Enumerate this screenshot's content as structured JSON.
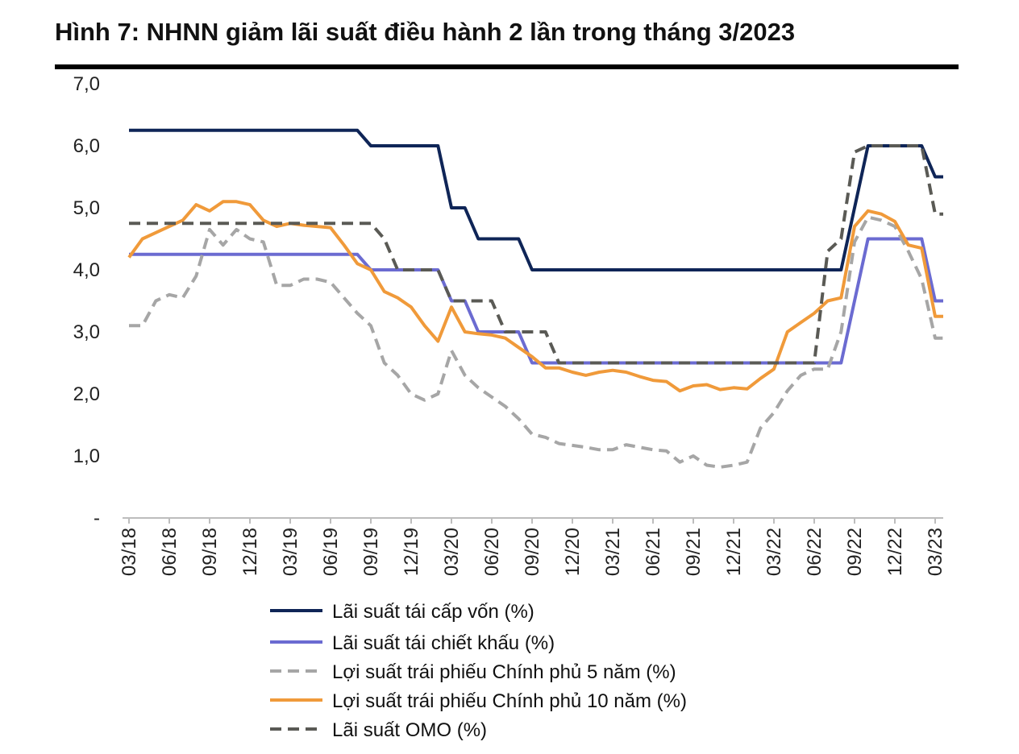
{
  "chart_data": {
    "type": "line",
    "title": "Hình 7: NHNN giảm lãi suất điều hành 2 lần trong tháng 3/2023",
    "xlabel": "",
    "ylabel": "",
    "ylim": [
      0,
      7
    ],
    "yticks": [
      "-",
      "1,0",
      "2,0",
      "3,0",
      "4,0",
      "5,0",
      "6,0",
      "7,0"
    ],
    "x_start": "03/18",
    "x_end": "03/23",
    "x_frequency": "monthly",
    "xtick_labels": [
      "03/18",
      "06/18",
      "09/18",
      "12/18",
      "03/19",
      "06/19",
      "09/19",
      "12/19",
      "03/20",
      "06/20",
      "09/20",
      "12/20",
      "03/21",
      "06/21",
      "09/21",
      "12/21",
      "03/22",
      "06/22",
      "09/22",
      "12/22",
      "03/23"
    ],
    "grid": false,
    "legend_position": "bottom",
    "series": [
      {
        "name": "Lãi suất tái cấp vốn (%)",
        "color": "#0f2557",
        "style": "solid",
        "values": [
          6.25,
          6.25,
          6.25,
          6.25,
          6.25,
          6.25,
          6.25,
          6.25,
          6.25,
          6.25,
          6.25,
          6.25,
          6.25,
          6.25,
          6.25,
          6.25,
          6.25,
          6.25,
          6.0,
          6.0,
          6.0,
          6.0,
          6.0,
          6.0,
          5.0,
          5.0,
          4.5,
          4.5,
          4.5,
          4.5,
          4.0,
          4.0,
          4.0,
          4.0,
          4.0,
          4.0,
          4.0,
          4.0,
          4.0,
          4.0,
          4.0,
          4.0,
          4.0,
          4.0,
          4.0,
          4.0,
          4.0,
          4.0,
          4.0,
          4.0,
          4.0,
          4.0,
          4.0,
          4.0,
          5.0,
          6.0,
          6.0,
          6.0,
          6.0,
          6.0,
          5.5
        ]
      },
      {
        "name": "Lãi suất tái chiết khấu (%)",
        "color": "#6b6bd1",
        "style": "solid",
        "values": [
          4.25,
          4.25,
          4.25,
          4.25,
          4.25,
          4.25,
          4.25,
          4.25,
          4.25,
          4.25,
          4.25,
          4.25,
          4.25,
          4.25,
          4.25,
          4.25,
          4.25,
          4.25,
          4.0,
          4.0,
          4.0,
          4.0,
          4.0,
          4.0,
          3.5,
          3.5,
          3.0,
          3.0,
          3.0,
          3.0,
          2.5,
          2.5,
          2.5,
          2.5,
          2.5,
          2.5,
          2.5,
          2.5,
          2.5,
          2.5,
          2.5,
          2.5,
          2.5,
          2.5,
          2.5,
          2.5,
          2.5,
          2.5,
          2.5,
          2.5,
          2.5,
          2.5,
          2.5,
          2.5,
          3.5,
          4.5,
          4.5,
          4.5,
          4.5,
          4.5,
          3.5
        ]
      },
      {
        "name": "Lợi suất trái phiếu Chính phủ 5 năm (%)",
        "color": "#a6a6a6",
        "style": "dashed",
        "values": [
          3.1,
          3.1,
          3.5,
          3.6,
          3.55,
          3.9,
          4.65,
          4.4,
          4.65,
          4.5,
          4.45,
          3.75,
          3.75,
          3.85,
          3.85,
          3.8,
          3.55,
          3.3,
          3.1,
          2.5,
          2.3,
          2.0,
          1.9,
          2.0,
          2.7,
          2.3,
          2.1,
          1.95,
          1.8,
          1.6,
          1.35,
          1.3,
          1.2,
          1.17,
          1.14,
          1.1,
          1.1,
          1.18,
          1.14,
          1.1,
          1.08,
          0.9,
          1.0,
          0.85,
          0.82,
          0.85,
          0.9,
          1.45,
          1.7,
          2.05,
          2.3,
          2.4,
          2.4,
          3.0,
          4.45,
          4.85,
          4.8,
          4.7,
          4.3,
          3.85,
          2.9
        ]
      },
      {
        "name": "Lợi suất trái phiếu Chính phủ 10 năm (%)",
        "color": "#f09a3a",
        "style": "solid",
        "values": [
          4.2,
          4.5,
          4.6,
          4.7,
          4.8,
          5.05,
          4.95,
          5.1,
          5.1,
          5.05,
          4.8,
          4.7,
          4.75,
          4.72,
          4.7,
          4.68,
          4.4,
          4.1,
          4.0,
          3.65,
          3.55,
          3.4,
          3.1,
          2.85,
          3.4,
          3.0,
          2.97,
          2.95,
          2.9,
          2.75,
          2.6,
          2.42,
          2.42,
          2.35,
          2.3,
          2.35,
          2.38,
          2.35,
          2.28,
          2.22,
          2.2,
          2.05,
          2.13,
          2.15,
          2.07,
          2.1,
          2.08,
          2.25,
          2.4,
          3.0,
          3.15,
          3.3,
          3.5,
          3.55,
          4.7,
          4.95,
          4.9,
          4.78,
          4.4,
          4.35,
          3.25
        ]
      },
      {
        "name": "Lãi suất OMO (%)",
        "color": "#5a5a55",
        "style": "dashed",
        "values": [
          4.75,
          4.75,
          4.75,
          4.75,
          4.75,
          4.75,
          4.75,
          4.75,
          4.75,
          4.75,
          4.75,
          4.75,
          4.75,
          4.75,
          4.75,
          4.75,
          4.75,
          4.75,
          4.75,
          4.5,
          4.0,
          4.0,
          4.0,
          4.0,
          3.5,
          3.5,
          3.5,
          3.5,
          3.0,
          3.0,
          3.0,
          3.0,
          2.5,
          2.5,
          2.5,
          2.5,
          2.5,
          2.5,
          2.5,
          2.5,
          2.5,
          2.5,
          2.5,
          2.5,
          2.5,
          2.5,
          2.5,
          2.5,
          2.5,
          2.5,
          2.5,
          2.5,
          4.3,
          4.5,
          5.9,
          6.0,
          6.0,
          6.0,
          6.0,
          6.0,
          4.9
        ]
      }
    ]
  }
}
